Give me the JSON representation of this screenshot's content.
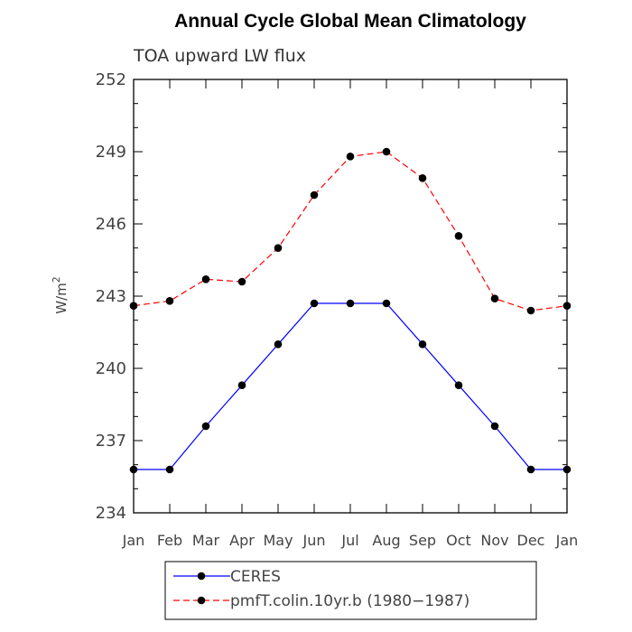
{
  "chart_data": {
    "type": "line",
    "title": "Annual Cycle Global Mean Climatology",
    "subtitle": "TOA upward LW flux",
    "ylabel_base": "W/m",
    "ylabel_sup": "2",
    "ylim": [
      234,
      252
    ],
    "yticks": [
      234,
      237,
      240,
      243,
      246,
      249,
      252
    ],
    "x": [
      "Jan",
      "Feb",
      "Mar",
      "Apr",
      "May",
      "Jun",
      "Jul",
      "Aug",
      "Sep",
      "Oct",
      "Nov",
      "Dec",
      "Jan"
    ],
    "series": [
      {
        "name": "CERES",
        "color": "#0000ff",
        "dash": "solid",
        "values": [
          235.8,
          235.8,
          237.6,
          239.3,
          241.0,
          242.7,
          242.7,
          242.7,
          241.0,
          239.3,
          237.6,
          235.8,
          235.8
        ]
      },
      {
        "name": "pmfT.colin.10yr.b (1980−1987)",
        "color": "#ff0000",
        "dash": "dashed",
        "values": [
          242.6,
          242.8,
          243.7,
          243.6,
          245.0,
          247.2,
          248.8,
          249.0,
          247.9,
          245.5,
          242.9,
          242.4,
          242.6
        ]
      }
    ],
    "grid": false,
    "legend_position": "bottom-center"
  }
}
